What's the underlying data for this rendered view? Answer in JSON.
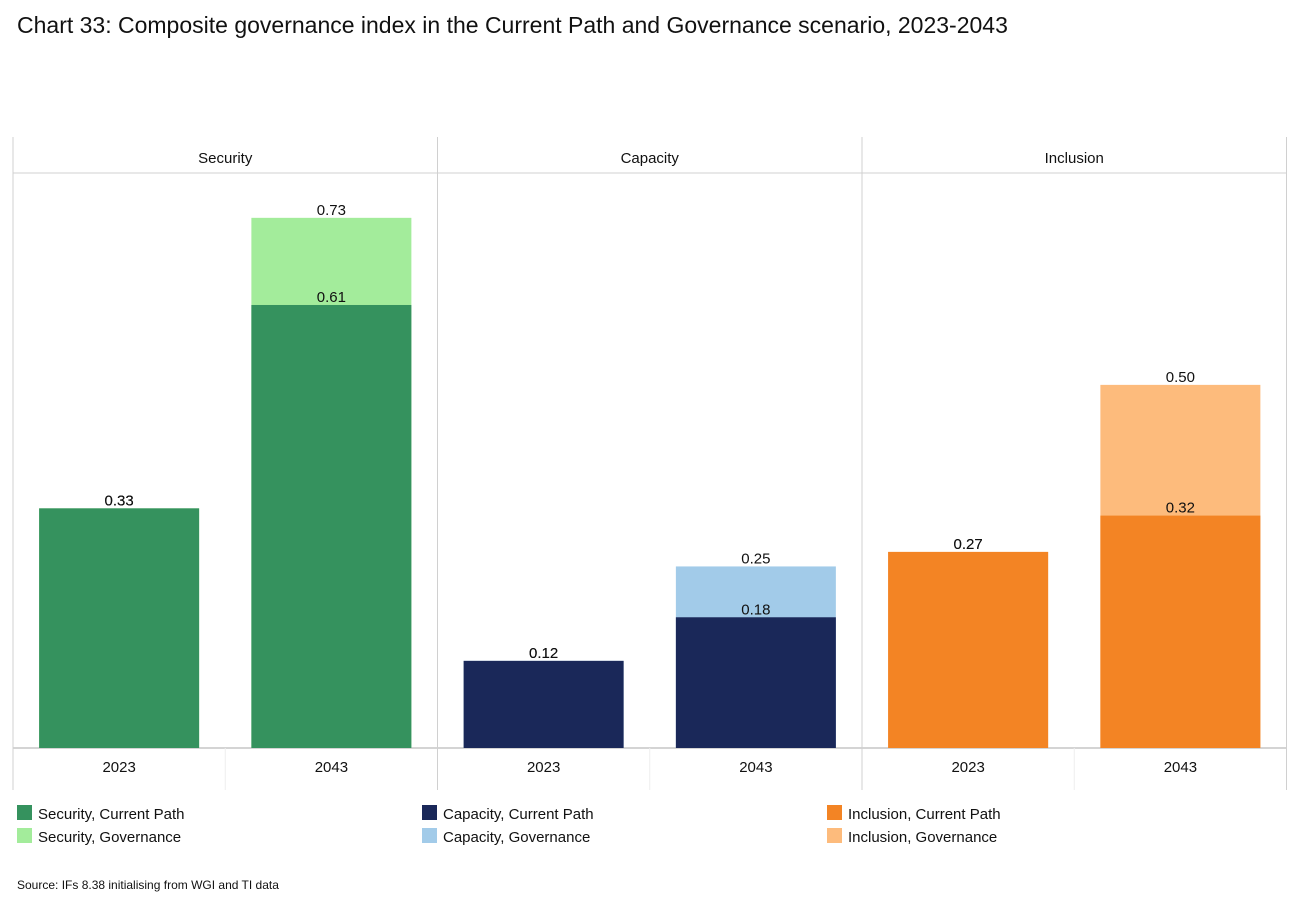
{
  "title": "Chart 33: Composite governance index in the Current Path and Governance scenario, 2023-2043",
  "source": "Source: IFs 8.38 initialising from WGI and TI data",
  "chart_data": [
    {
      "type": "bar",
      "title": "Security",
      "categories": [
        "2023",
        "2043"
      ],
      "ylim": [
        0,
        0.8
      ],
      "series": [
        {
          "name": "Security, Current Path",
          "color": "#35925e",
          "values": [
            0.33,
            0.61
          ],
          "value_labels": [
            "0.33",
            "0.61"
          ]
        },
        {
          "name": "Security, Governance",
          "color": "#a3ec9b",
          "values": [
            0.33,
            0.73
          ],
          "value_labels": [
            "0.33",
            "0.73"
          ]
        }
      ]
    },
    {
      "type": "bar",
      "title": "Capacity",
      "categories": [
        "2023",
        "2043"
      ],
      "ylim": [
        0,
        0.8
      ],
      "series": [
        {
          "name": "Capacity, Current Path",
          "color": "#1a2859",
          "values": [
            0.12,
            0.18
          ],
          "value_labels": [
            "0.12",
            "0.18"
          ]
        },
        {
          "name": "Capacity, Governance",
          "color": "#a2cbe9",
          "values": [
            0.12,
            0.25
          ],
          "value_labels": [
            "0.12",
            "0.25"
          ]
        }
      ]
    },
    {
      "type": "bar",
      "title": "Inclusion",
      "categories": [
        "2023",
        "2043"
      ],
      "ylim": [
        0,
        0.8
      ],
      "series": [
        {
          "name": "Inclusion, Current Path",
          "color": "#f38424",
          "values": [
            0.27,
            0.32
          ],
          "value_labels": [
            "0.27",
            "0.32"
          ]
        },
        {
          "name": "Inclusion, Governance",
          "color": "#fdbb7c",
          "values": [
            0.27,
            0.5
          ],
          "value_labels": [
            "0.27",
            "0.50"
          ]
        }
      ]
    }
  ]
}
